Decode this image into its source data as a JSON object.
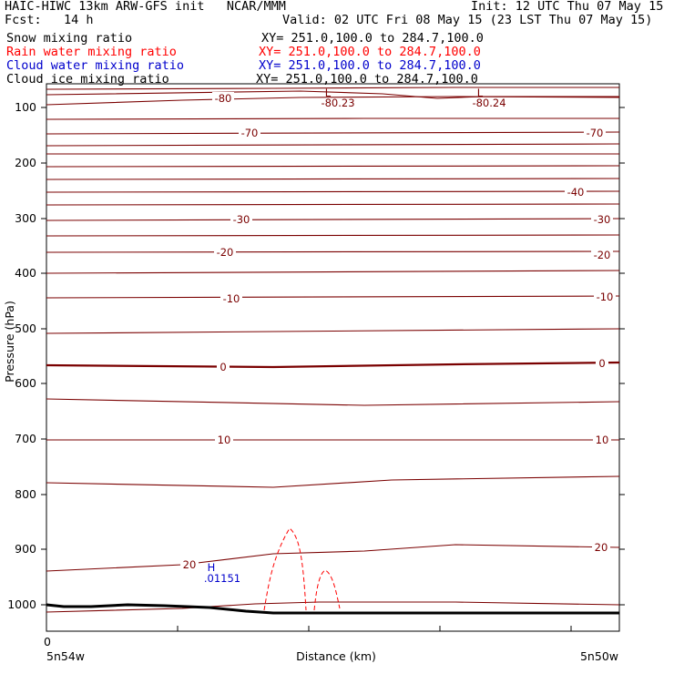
{
  "header": {
    "title": "HAIC-HIWC 13km ARW-GFS init   NCAR/MMM",
    "init": "Init: 12 UTC Thu 07 May 15",
    "fcst": "Fcst:   14 h",
    "valid": "Valid: 02 UTC Fri 08 May 15 (23 LST Thu 07 May 15)",
    "fields": [
      {
        "name": "Snow mixing ratio",
        "xy": "XY= 251.0,100.0 to 284.7,100.0",
        "color": "#000000"
      },
      {
        "name": "Rain water mixing ratio",
        "xy": "XY= 251.0,100.0 to 284.7,100.0",
        "color": "#ff0000"
      },
      {
        "name": "Cloud water mixing ratio",
        "xy": "XY= 251.0,100.0 to 284.7,100.0",
        "color": "#0000cc"
      },
      {
        "name": "Cloud ice mixing ratio",
        "xy": "XY= 251.0,100.0 to 284.7,100.0",
        "color": "#000000"
      }
    ]
  },
  "chart_data": {
    "type": "line",
    "title": "",
    "ylabel": "Pressure (hPa)",
    "xlabel": "Distance (km)",
    "x_start_label": "5n54w",
    "x_end_label": "5n50w",
    "x_zero_label": "0",
    "yticks": [
      100,
      200,
      300,
      400,
      500,
      600,
      700,
      800,
      900,
      1000
    ],
    "ylim": [
      1050,
      60
    ],
    "contour_labels": [
      "-80",
      "-70",
      "-40",
      "-30",
      "-20",
      "-10",
      "0",
      "10",
      "20"
    ],
    "extrema": [
      {
        "symbol": "L",
        "value": "-80.23",
        "color": "#7a0000"
      },
      {
        "symbol": "L",
        "value": "-80.24",
        "color": "#7a0000"
      },
      {
        "symbol": "H",
        "value": ".01151",
        "color": "#0000cc"
      }
    ],
    "colors": {
      "temperature": "#7a0000",
      "rain": "#ff0000",
      "terrain": "#000000",
      "cloud_water": "#0000cc"
    }
  }
}
